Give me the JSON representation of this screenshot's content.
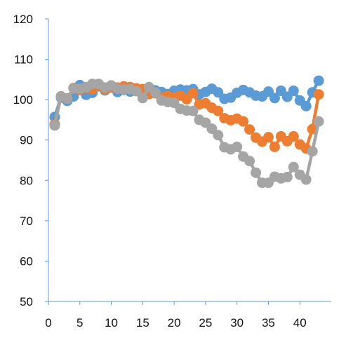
{
  "chart_data": {
    "type": "line",
    "title": "",
    "xlabel": "",
    "ylabel": "",
    "xlim": [
      0,
      45
    ],
    "ylim": [
      50,
      120
    ],
    "grid": false,
    "legend": "none",
    "x_ticks": [
      0,
      5,
      10,
      15,
      20,
      25,
      30,
      35,
      40
    ],
    "y_ticks": [
      50,
      60,
      70,
      80,
      90,
      100,
      110,
      120
    ],
    "x_tick_labels": [
      "0",
      "5",
      "10",
      "15",
      "20",
      "25",
      "30",
      "35",
      "40"
    ],
    "y_tick_labels": [
      "50",
      "60",
      "70",
      "80",
      "90",
      "100",
      "110",
      "120"
    ],
    "x": [
      1,
      2,
      3,
      4,
      5,
      6,
      7,
      8,
      9,
      10,
      11,
      12,
      13,
      14,
      15,
      16,
      17,
      18,
      19,
      20,
      21,
      22,
      23,
      24,
      25,
      26,
      27,
      28,
      29,
      30,
      31,
      32,
      33,
      34,
      35,
      36,
      37,
      38,
      39,
      40,
      41,
      42,
      43
    ],
    "series": [
      {
        "color": "#5B9BD5",
        "values": [
          95.7,
          100.5,
          99.7,
          100.8,
          103.6,
          101.2,
          101.7,
          103.3,
          102.3,
          103.5,
          101.9,
          102.4,
          102.0,
          102.2,
          101.8,
          102.7,
          102.3,
          101.9,
          101.4,
          102.2,
          102.5,
          102.3,
          102.6,
          101.3,
          101.9,
          102.7,
          101.8,
          100.2,
          100.5,
          101.7,
          102.4,
          101.8,
          101.0,
          100.8,
          102.0,
          100.4,
          102.2,
          100.7,
          102.2,
          99.8,
          98.4,
          101.8,
          104.7
        ]
      },
      {
        "color": "#ED7D31",
        "values": [
          93.9,
          100.8,
          100.3,
          102.9,
          102.4,
          102.9,
          102.6,
          103.4,
          102.6,
          103.0,
          103.0,
          103.3,
          103.1,
          102.8,
          102.6,
          101.4,
          101.6,
          100.5,
          100.9,
          100.5,
          101.0,
          100.1,
          101.6,
          98.8,
          99.1,
          98.0,
          97.2,
          95.4,
          94.9,
          95.3,
          94.6,
          92.6,
          90.6,
          89.6,
          90.7,
          88.3,
          90.9,
          89.7,
          90.9,
          88.9,
          87.9,
          92.7,
          101.3
        ]
      },
      {
        "color": "#A5A5A5",
        "values": [
          93.6,
          100.8,
          100.2,
          102.8,
          102.7,
          103.1,
          103.9,
          103.9,
          103.0,
          103.5,
          102.7,
          102.5,
          102.6,
          102.1,
          100.4,
          103.1,
          101.8,
          99.8,
          99.4,
          99.2,
          97.7,
          97.3,
          97.2,
          95.0,
          94.3,
          92.8,
          91.2,
          88.2,
          87.7,
          88.3,
          85.9,
          84.8,
          81.9,
          79.4,
          79.4,
          80.9,
          80.5,
          80.8,
          83.3,
          81.4,
          80.2,
          87.2,
          94.6
        ]
      }
    ]
  }
}
